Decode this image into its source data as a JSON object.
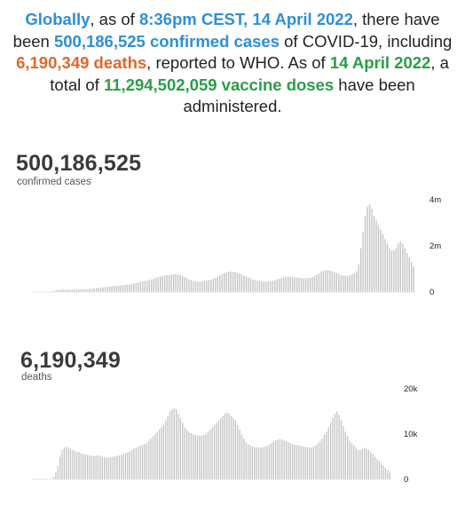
{
  "summary": {
    "p1": "Globally",
    "p2": ", as of ",
    "p3": "8:36pm CEST, 14 April 2022",
    "p4": ", there have been ",
    "p5": "500,186,525 confirmed cases",
    "p6": " of COVID-19, including ",
    "p7": "6,190,349 deaths",
    "p8": ", reported to WHO. As of ",
    "p9": "14 April 2022",
    "p10": ", a total of ",
    "p11": "11,294,502,059 vaccine doses",
    "p12": " have been administered."
  },
  "colors": {
    "blue": "#2d8fd5",
    "orange": "#e0672a",
    "green": "#2a9d47",
    "bars": "#c4c4c4"
  },
  "chart_data": [
    {
      "type": "bar",
      "total": "500,186,525",
      "label": "confirmed cases",
      "ylim": [
        0,
        4000000
      ],
      "yticks": [
        "0",
        "2m",
        "4m"
      ],
      "values": [
        0,
        0,
        0,
        0,
        0,
        0,
        2000,
        5000,
        10000,
        30000,
        60000,
        80000,
        100000,
        100000,
        110000,
        100000,
        100000,
        100000,
        110000,
        110000,
        110000,
        110000,
        120000,
        130000,
        130000,
        130000,
        140000,
        150000,
        160000,
        170000,
        180000,
        190000,
        200000,
        220000,
        230000,
        240000,
        250000,
        260000,
        270000,
        280000,
        290000,
        300000,
        310000,
        320000,
        330000,
        350000,
        370000,
        390000,
        420000,
        440000,
        460000,
        480000,
        500000,
        520000,
        550000,
        580000,
        610000,
        650000,
        680000,
        700000,
        720000,
        730000,
        740000,
        750000,
        760000,
        770000,
        760000,
        740000,
        700000,
        650000,
        600000,
        550000,
        510000,
        480000,
        460000,
        450000,
        450000,
        460000,
        470000,
        490000,
        510000,
        540000,
        580000,
        620000,
        670000,
        720000,
        770000,
        820000,
        860000,
        880000,
        890000,
        880000,
        860000,
        830000,
        800000,
        760000,
        720000,
        680000,
        630000,
        590000,
        550000,
        520000,
        500000,
        480000,
        460000,
        450000,
        450000,
        460000,
        470000,
        490000,
        520000,
        550000,
        580000,
        610000,
        640000,
        660000,
        670000,
        660000,
        650000,
        640000,
        630000,
        620000,
        610000,
        600000,
        600000,
        610000,
        620000,
        650000,
        700000,
        760000,
        820000,
        880000,
        920000,
        940000,
        950000,
        930000,
        900000,
        860000,
        820000,
        780000,
        740000,
        720000,
        700000,
        700000,
        720000,
        760000,
        800000,
        900000,
        1200000,
        1900000,
        2600000,
        3300000,
        3700000,
        3800000,
        3600000,
        3300000,
        3100000,
        2900000,
        2700000,
        2500000,
        2300000,
        2100000,
        1900000,
        1800000,
        1800000,
        1900000,
        2100000,
        2200000,
        2100000,
        1900000,
        1700000,
        1500000,
        1300000,
        1100000
      ]
    },
    {
      "type": "bar",
      "total": "6,190,349",
      "label": "deaths",
      "ylim": [
        0,
        20000
      ],
      "yticks": [
        "0",
        "10k",
        "20k"
      ],
      "values": [
        0,
        0,
        0,
        0,
        0,
        0,
        0,
        0,
        100,
        200,
        500,
        1500,
        3000,
        5000,
        6500,
        7000,
        7200,
        7000,
        6800,
        6500,
        6300,
        6100,
        6000,
        5800,
        5600,
        5500,
        5400,
        5300,
        5200,
        5100,
        5200,
        5300,
        5200,
        5000,
        4900,
        4800,
        4800,
        4900,
        5000,
        5100,
        5200,
        5300,
        5400,
        5600,
        5800,
        6000,
        6200,
        6500,
        6800,
        7000,
        7200,
        7400,
        7600,
        7800,
        8000,
        8500,
        9000,
        9500,
        10000,
        10500,
        11000,
        11500,
        12000,
        13000,
        14000,
        15000,
        15500,
        15800,
        15500,
        14500,
        13500,
        12500,
        11500,
        11000,
        10500,
        10200,
        10000,
        9800,
        9700,
        9600,
        9600,
        9800,
        10000,
        10500,
        11000,
        11500,
        12000,
        12500,
        13000,
        13500,
        14000,
        14500,
        14700,
        14500,
        14000,
        13500,
        13000,
        12000,
        11000,
        10000,
        9000,
        8200,
        7800,
        7500,
        7300,
        7200,
        7100,
        7000,
        7000,
        7100,
        7200,
        7400,
        7700,
        8000,
        8300,
        8600,
        8800,
        8900,
        8800,
        8600,
        8400,
        8200,
        8000,
        7800,
        7700,
        7600,
        7500,
        7400,
        7300,
        7200,
        7100,
        7000,
        7000,
        7200,
        7500,
        8000,
        8500,
        9000,
        9800,
        10500,
        11500,
        12500,
        13500,
        14500,
        15000,
        14200,
        13000,
        11800,
        10500,
        9500,
        8500,
        8000,
        7500,
        7000,
        6500,
        6500,
        6800,
        7000,
        6800,
        6500,
        6000,
        5500,
        5000,
        4500,
        4000,
        3500,
        3000,
        2500,
        2000,
        1500
      ]
    }
  ]
}
